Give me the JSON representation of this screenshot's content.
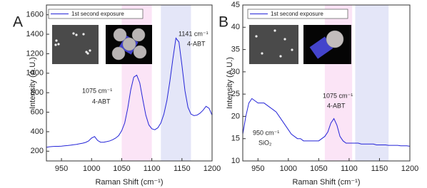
{
  "chart_data": [
    {
      "type": "line",
      "panel_label": "A",
      "x_label": "Raman Shift (cm⁻¹)",
      "y_label": "Intensity (A.U.)",
      "xlim": [
        925,
        1200
      ],
      "xticks": [
        950,
        1000,
        1050,
        1100,
        1150,
        1200
      ],
      "ylim": [
        100,
        1700
      ],
      "yticks": [
        200,
        400,
        600,
        800,
        1000,
        1200,
        1400,
        1600
      ],
      "bands": [
        {
          "x": [
            1050,
            1100
          ],
          "color": "#fbe4f6"
        },
        {
          "x": [
            1115,
            1165
          ],
          "color": "#e4e6f8"
        }
      ],
      "annotations": [
        {
          "text": "1075 cm⁻¹"
        },
        {
          "text": "4-ABT"
        },
        {
          "text": "1141 cm⁻¹"
        },
        {
          "text": "4-ABT"
        }
      ],
      "legend": "top-left",
      "x": [
        925,
        930,
        935,
        940,
        945,
        950,
        955,
        960,
        965,
        970,
        975,
        980,
        985,
        990,
        995,
        1000,
        1005,
        1010,
        1015,
        1020,
        1025,
        1030,
        1035,
        1040,
        1045,
        1050,
        1055,
        1060,
        1065,
        1070,
        1075,
        1080,
        1085,
        1090,
        1095,
        1100,
        1105,
        1110,
        1115,
        1120,
        1125,
        1130,
        1135,
        1140,
        1145,
        1150,
        1155,
        1160,
        1165,
        1170,
        1175,
        1180,
        1185,
        1190,
        1195,
        1200
      ],
      "series": [
        {
          "name": "1st second exposure",
          "color": "#2424d8",
          "values": [
            240,
            245,
            248,
            250,
            250,
            252,
            255,
            258,
            262,
            266,
            270,
            276,
            282,
            290,
            305,
            335,
            350,
            310,
            292,
            292,
            298,
            305,
            318,
            335,
            360,
            410,
            490,
            640,
            830,
            960,
            980,
            900,
            730,
            570,
            470,
            430,
            420,
            440,
            490,
            580,
            720,
            920,
            1150,
            1360,
            1320,
            1080,
            820,
            650,
            580,
            565,
            570,
            590,
            620,
            660,
            640,
            570
          ]
        }
      ]
    },
    {
      "type": "line",
      "panel_label": "B",
      "x_label": "Raman Shift (cm⁻¹)",
      "y_label": "Intensity (A.U.)",
      "xlim": [
        925,
        1200
      ],
      "xticks": [
        950,
        1000,
        1050,
        1100,
        1150,
        1200
      ],
      "ylim": [
        10,
        45
      ],
      "yticks": [
        10,
        15,
        20,
        25,
        30,
        35,
        40,
        45
      ],
      "bands": [
        {
          "x": [
            1060,
            1105
          ],
          "color": "#fbe4f6"
        },
        {
          "x": [
            1110,
            1165
          ],
          "color": "#e4e6f8"
        }
      ],
      "annotations": [
        {
          "text": "950 cm⁻¹"
        },
        {
          "text": "SiO₂"
        },
        {
          "text": "1075 cm⁻¹"
        },
        {
          "text": "4-ABT"
        }
      ],
      "legend": "top-left",
      "x": [
        925,
        930,
        935,
        940,
        945,
        950,
        955,
        960,
        965,
        970,
        975,
        980,
        985,
        990,
        995,
        1000,
        1005,
        1010,
        1015,
        1020,
        1025,
        1030,
        1035,
        1040,
        1045,
        1050,
        1055,
        1060,
        1065,
        1070,
        1075,
        1080,
        1085,
        1090,
        1095,
        1100,
        1105,
        1110,
        1115,
        1120,
        1125,
        1130,
        1135,
        1140,
        1145,
        1150,
        1155,
        1160,
        1165,
        1170,
        1175,
        1180,
        1185,
        1190,
        1195,
        1200
      ],
      "series": [
        {
          "name": "1st second exposure",
          "color": "#2424d8",
          "values": [
            16,
            20,
            23,
            24,
            23.5,
            23,
            23,
            23,
            22.5,
            22,
            21.5,
            21,
            20,
            19,
            18,
            17,
            16,
            15.5,
            15,
            15,
            14.5,
            14.5,
            14.5,
            14.5,
            14.5,
            14.5,
            15,
            15.5,
            16.5,
            18.5,
            19.5,
            18,
            15.5,
            14.5,
            14,
            14,
            14,
            14,
            14,
            13.8,
            13.8,
            13.8,
            13.8,
            13.8,
            13.6,
            13.6,
            13.6,
            13.6,
            13.5,
            13.5,
            13.5,
            13.5,
            13.4,
            13.4,
            13.4,
            13.3
          ]
        }
      ]
    }
  ]
}
